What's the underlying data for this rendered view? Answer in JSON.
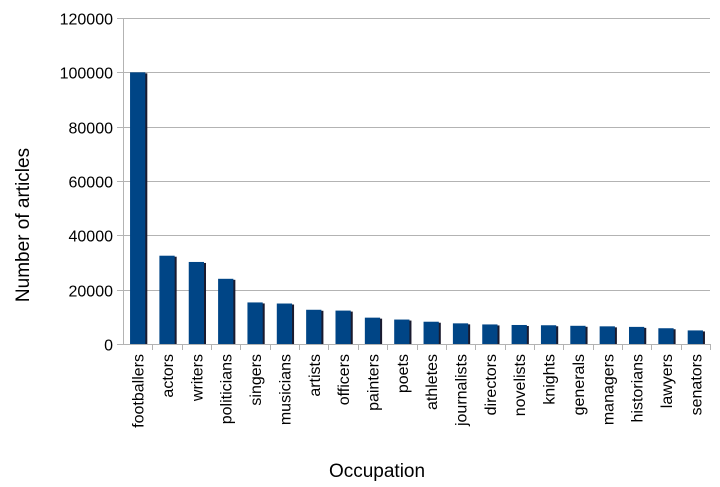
{
  "chart_data": {
    "type": "bar",
    "title": "",
    "xlabel": "Occupation",
    "ylabel": "Number of articles",
    "ylim": [
      0,
      120000
    ],
    "yticks": [
      "0",
      "20000",
      "40000",
      "60000",
      "80000",
      "100000",
      "120000"
    ],
    "grid": true,
    "legend": "none",
    "bar_color": "#004586",
    "bar_shadow_color": "#1a1a2e",
    "categories": [
      "footballers",
      "actors",
      "writers",
      "politicians",
      "singers",
      "musicians",
      "artists",
      "officers",
      "painters",
      "poets",
      "athletes",
      "journalists",
      "directors",
      "novelists",
      "knights",
      "generals",
      "managers",
      "historians",
      "lawyers",
      "senators"
    ],
    "values": [
      100000,
      32500,
      30200,
      24000,
      15300,
      14900,
      12600,
      12300,
      9700,
      9000,
      8200,
      7600,
      7200,
      7000,
      6900,
      6700,
      6500,
      6300,
      5800,
      5000
    ]
  }
}
